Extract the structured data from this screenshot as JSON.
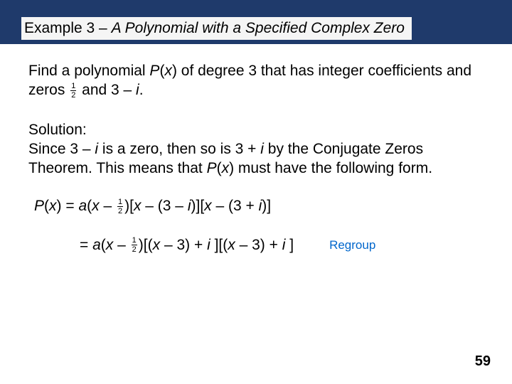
{
  "header": {
    "prefix": "Example 3 – ",
    "title_italic": "A Polynomial with a Specified Complex Zero"
  },
  "problem": {
    "part1": "Find a polynomial ",
    "p": "P",
    "of_x": "(",
    "x": "x",
    "part2": ") of degree 3 that has integer coefficients and zeros ",
    "frac_num": "1",
    "frac_den": "2",
    "part3": " and 3 – ",
    "i": "i",
    "period": "."
  },
  "solution": {
    "label": "Solution:",
    "line1a": "Since 3 – ",
    "line1b": " is a zero, then so is 3 + ",
    "line1c": " by the Conjugate Zeros Theorem. This means that ",
    "line1d": "(",
    "line1e": ") must have the following form."
  },
  "eq1": {
    "left": "P",
    "p1": "(",
    "x1": "x",
    "p2": ") = ",
    "a": "a",
    "p3": "(",
    "x2": "x",
    "p4": " – ",
    "p5": ")[",
    "x3": "x",
    "p6": " – (3 – ",
    "p7": ")][",
    "x4": "x",
    "p8": " – (3 + ",
    "p9": ")]"
  },
  "eq2": {
    "p1": "= ",
    "a": "a",
    "p2": "(",
    "x1": "x",
    "p3": " – ",
    "p4": ")[(",
    "x2": "x",
    "p5": " – 3) + ",
    "i1sp": " ",
    "p6": "][(",
    "x3": "x",
    "p7": " – 3) + ",
    "i2sp": " ",
    "p8": "]"
  },
  "regroup": "Regroup",
  "pagenum": "59",
  "i_char": "i"
}
